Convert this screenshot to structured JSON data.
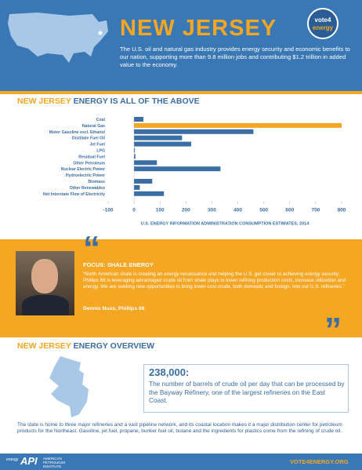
{
  "header": {
    "state": "NEW JERSEY",
    "badge": [
      "vote4",
      "energy"
    ],
    "intro": "The U.S. oil and natural gas industry provides energy security and economic benefits to our nation, supporting more than 9.8 million jobs and contributing $1.2 trillion in added value to the economy."
  },
  "chart_section": {
    "title_highlight": "NEW JERSEY",
    "title_rest": "ENERGY IS ALL OF THE ABOVE"
  },
  "chart_data": {
    "type": "hbar",
    "categories": [
      "Coal",
      "Natural Gas",
      "Motor Gasoline excl. Ethanol",
      "Distillate Fuel Oil",
      "Jet Fuel",
      "LPG",
      "Residual Fuel",
      "Other Petroleum",
      "Nuclear Electric Power",
      "Hydroelectric Power",
      "Biomass",
      "Other Renewables",
      "Net Interstate Flow of Electricity"
    ],
    "values": [
      36,
      800,
      460,
      185,
      220,
      3,
      5,
      88,
      333,
      0,
      70,
      22,
      115
    ],
    "colors": [
      "#3a6ea5",
      "#f5a623",
      "#3a6ea5",
      "#3a6ea5",
      "#3a6ea5",
      "#3a6ea5",
      "#3a6ea5",
      "#3a6ea5",
      "#3a6ea5",
      "#3a6ea5",
      "#3a6ea5",
      "#3a6ea5",
      "#3a6ea5"
    ],
    "xlim": [
      -100,
      800
    ],
    "xticks": [
      -100,
      0,
      100,
      200,
      300,
      400,
      500,
      600,
      700,
      800
    ],
    "x_label": "U.S. ENERGY INFORMATION ADMINISTRATION CONSUMPTION ESTIMATES, 2014"
  },
  "focus": {
    "open_mark": "“",
    "close_mark": "”",
    "title": "FOCUS: SHALE ENERGY",
    "quote": "“North American shale is creating an energy renaissance and helping the U.S. get closer to achieving energy security. Phillips 66 is leveraging advantaged crude oil from shale plays to lower refining production costs, increase utilization and energy. We are seeking new opportunities to bring lower-cost crude, both domestic and foreign, into our U.S. refineries.”",
    "author": "Dennis Nuss, Phillips 66"
  },
  "overview": {
    "title_highlight": "NEW JERSEY",
    "title_rest": "ENERGY OVERVIEW",
    "stat": "238,000:",
    "stat_text": "The number of barrels of crude oil per day that can be processed by the Bayway Refinery, one of the largest refineries on the East Coast.",
    "body": "The state is home to three major refineries and a vast pipeline network, and its coastal location makes it a major distribution center for petroleum products for the Northeast. Gasoline, jet fuel, propane, bunker fuel oil, butane and the ingredients for plastics come from the refining of crude oil."
  },
  "footer": {
    "logo_small": "energy",
    "logo": "API",
    "institute": "AMERICAN PETROLEUM INSTITUTE",
    "url": "VOTE4ENERGY.ORG"
  }
}
